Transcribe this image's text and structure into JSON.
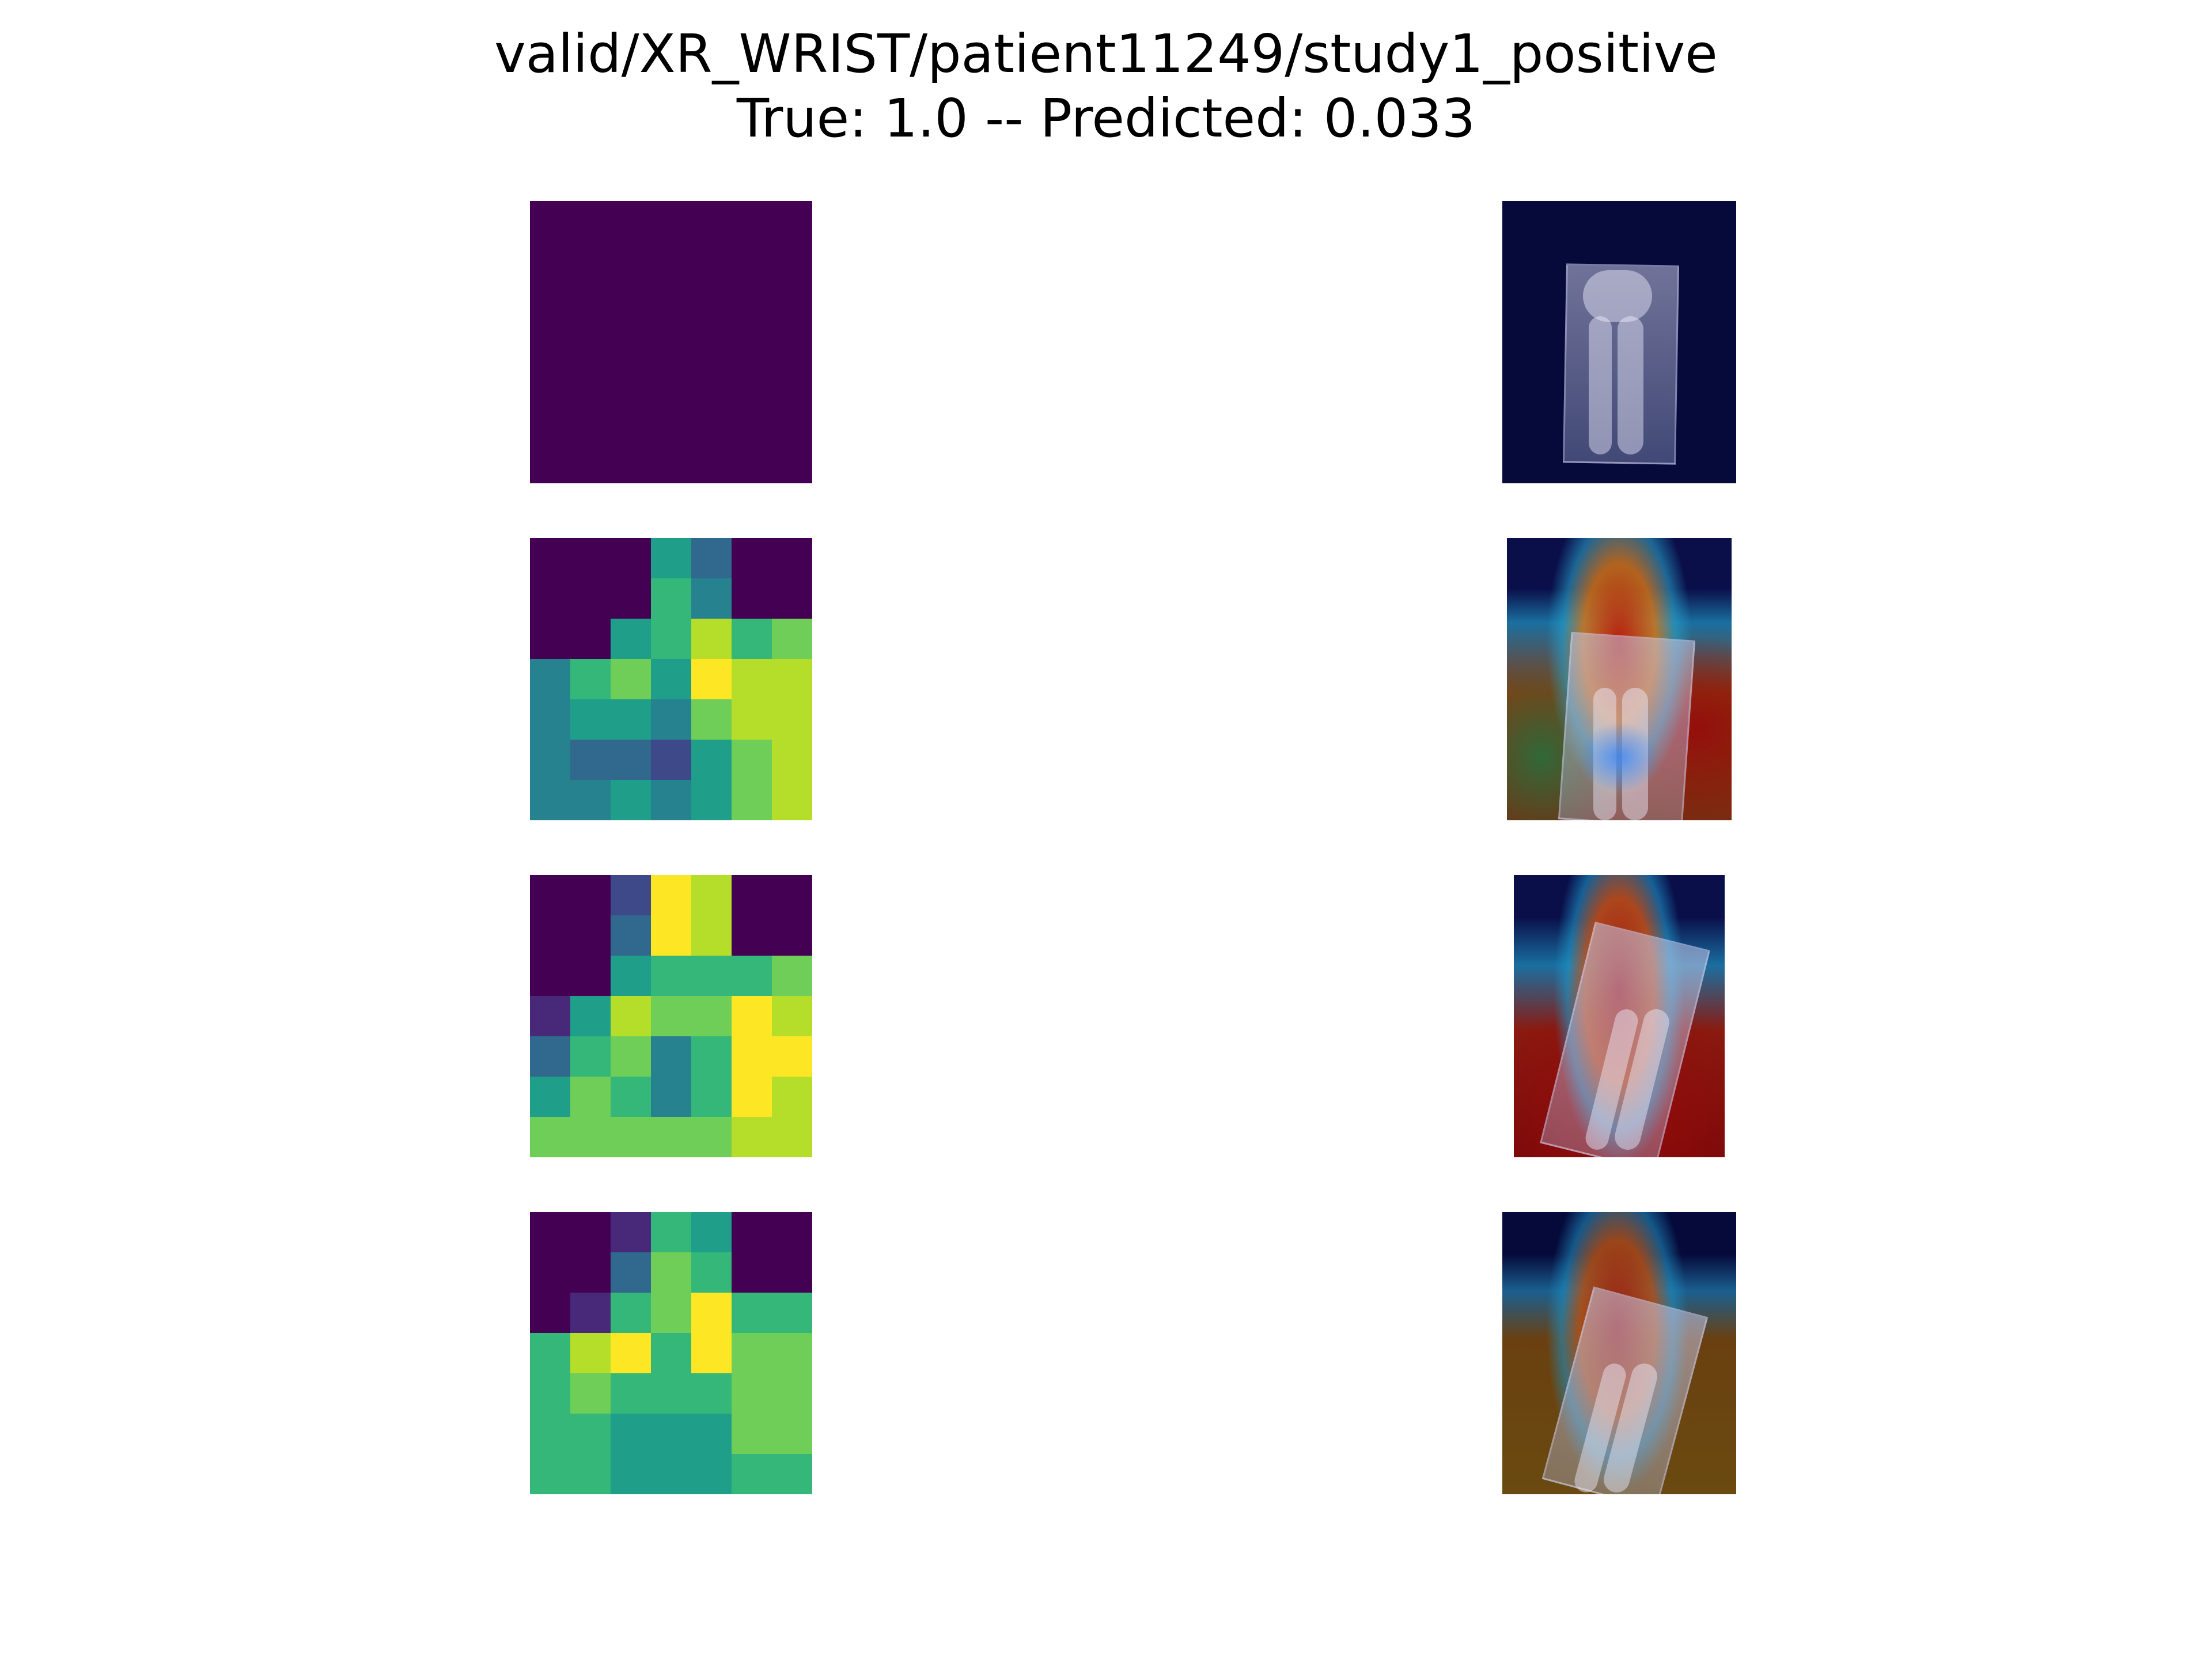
{
  "title": {
    "line1": "valid/XR_WRIST/patient11249/study1_positive",
    "line2": "True: 1.0 -- Predicted: 0.033"
  },
  "colors": {
    "viridis": [
      "#440154",
      "#482878",
      "#3e4989",
      "#31688e",
      "#26828e",
      "#1f9e89",
      "#35b779",
      "#6ece58",
      "#b5de2b",
      "#fde725"
    ]
  },
  "heatmaps": [
    {
      "name": "heatmap-1",
      "cells": [
        [
          0,
          0,
          0,
          0,
          0,
          0,
          0
        ],
        [
          0,
          0,
          0,
          0,
          0,
          0,
          0
        ],
        [
          0,
          0,
          0,
          0,
          0,
          0,
          0
        ],
        [
          0,
          0,
          0,
          0,
          0,
          0,
          0
        ],
        [
          0,
          0,
          0,
          0,
          0,
          0,
          0
        ],
        [
          0,
          0,
          0,
          0,
          0,
          0,
          0
        ],
        [
          0,
          0,
          0,
          0,
          0,
          0,
          0
        ]
      ]
    },
    {
      "name": "heatmap-2",
      "cells": [
        [
          0,
          0,
          0,
          5,
          3,
          0,
          0
        ],
        [
          0,
          0,
          0,
          6,
          4,
          0,
          0
        ],
        [
          0,
          0,
          5,
          6,
          8,
          6,
          7
        ],
        [
          4,
          6,
          7,
          5,
          9,
          8,
          8
        ],
        [
          4,
          5,
          5,
          4,
          7,
          8,
          8
        ],
        [
          4,
          3,
          3,
          2,
          5,
          7,
          8
        ],
        [
          4,
          4,
          5,
          4,
          5,
          7,
          8
        ]
      ]
    },
    {
      "name": "heatmap-3",
      "cells": [
        [
          0,
          0,
          2,
          9,
          8,
          0,
          0
        ],
        [
          0,
          0,
          3,
          9,
          8,
          0,
          0
        ],
        [
          0,
          0,
          5,
          6,
          6,
          6,
          7
        ],
        [
          1,
          5,
          8,
          7,
          7,
          9,
          8
        ],
        [
          3,
          6,
          7,
          4,
          6,
          9,
          9
        ],
        [
          5,
          7,
          6,
          4,
          6,
          9,
          8
        ],
        [
          7,
          7,
          7,
          7,
          7,
          8,
          8
        ]
      ]
    },
    {
      "name": "heatmap-4",
      "cells": [
        [
          0,
          0,
          1,
          6,
          5,
          0,
          0
        ],
        [
          0,
          0,
          3,
          7,
          6,
          0,
          0
        ],
        [
          0,
          1,
          6,
          7,
          9,
          6,
          6
        ],
        [
          6,
          8,
          9,
          6,
          9,
          7,
          7
        ],
        [
          6,
          7,
          6,
          6,
          6,
          7,
          7
        ],
        [
          6,
          6,
          5,
          5,
          5,
          7,
          7
        ],
        [
          6,
          6,
          5,
          5,
          5,
          6,
          6
        ]
      ]
    }
  ]
}
